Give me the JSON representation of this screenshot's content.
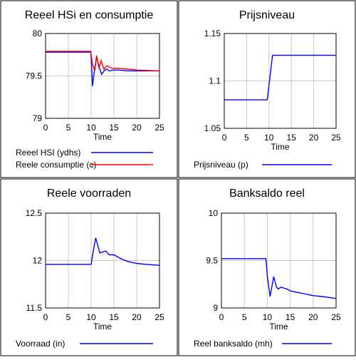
{
  "chart_data": [
    {
      "type": "line",
      "title": "Reeel HSi en consumptie",
      "xlabel": "Time",
      "ylabel": "",
      "xlim": [
        0,
        25
      ],
      "ylim": [
        79,
        80
      ],
      "xticks": [
        "0",
        "5",
        "10",
        "15",
        "20",
        "25"
      ],
      "yticks": [
        "80",
        "79.5",
        "79"
      ],
      "grid": true,
      "legend_position": "bottom",
      "series": [
        {
          "name": "Reeel HSI (ydhs)",
          "color": "#0000ff",
          "x": [
            0,
            9.9,
            10,
            10.3,
            10.8,
            11.2,
            11.8,
            12.3,
            13,
            13.5,
            14,
            15,
            16,
            18,
            20,
            25
          ],
          "y": [
            79.78,
            79.78,
            79.72,
            79.38,
            79.6,
            79.72,
            79.6,
            79.52,
            79.57,
            79.58,
            79.56,
            79.57,
            79.57,
            79.56,
            79.56,
            79.56
          ]
        },
        {
          "name": "Reele consumptie (c)",
          "color": "#ff0000",
          "x": [
            0,
            9.9,
            10.3,
            10.8,
            11.2,
            11.7,
            12.2,
            12.8,
            13.5,
            14.5,
            16,
            18,
            20,
            25
          ],
          "y": [
            79.79,
            79.79,
            79.64,
            79.56,
            79.74,
            79.59,
            79.68,
            79.58,
            79.62,
            79.59,
            79.59,
            79.58,
            79.57,
            79.56
          ]
        }
      ]
    },
    {
      "type": "line",
      "title": "Prijsniveau",
      "xlabel": "Time",
      "ylabel": "",
      "xlim": [
        0,
        25
      ],
      "ylim": [
        1.05,
        1.15
      ],
      "xticks": [
        "0",
        "5",
        "10",
        "15",
        "20",
        "25"
      ],
      "yticks": [
        "1.15",
        "1.1",
        "1.05"
      ],
      "grid": true,
      "legend_position": "bottom",
      "series": [
        {
          "name": "Prijsniveau (p)",
          "color": "#0000ff",
          "x": [
            0,
            9.6,
            10.8,
            25
          ],
          "y": [
            1.08,
            1.08,
            1.127,
            1.127
          ]
        }
      ]
    },
    {
      "type": "line",
      "title": "Reele voorraden",
      "xlabel": "Time",
      "ylabel": "",
      "xlim": [
        0,
        25
      ],
      "ylim": [
        11.5,
        12.5
      ],
      "xticks": [
        "0",
        "5",
        "10",
        "15",
        "20",
        "25"
      ],
      "yticks": [
        "12.5",
        "12",
        "11.5"
      ],
      "grid": true,
      "legend_position": "bottom",
      "series": [
        {
          "name": "Voorraad (in)",
          "color": "#0000ff",
          "x": [
            0,
            10,
            10.3,
            11,
            11.9,
            12.5,
            13.2,
            14,
            15,
            16.5,
            18,
            20,
            22,
            25
          ],
          "y": [
            11.96,
            11.96,
            12.05,
            12.24,
            12.08,
            12.09,
            12.1,
            12.06,
            12.06,
            12.02,
            11.99,
            11.97,
            11.96,
            11.95
          ]
        }
      ]
    },
    {
      "type": "line",
      "title": "Banksaldo reel",
      "xlabel": "Time",
      "ylabel": "",
      "xlim": [
        0,
        25
      ],
      "ylim": [
        9,
        10
      ],
      "xticks": [
        "0",
        "5",
        "10",
        "15",
        "20",
        "25"
      ],
      "yticks": [
        "10",
        "9.5",
        "9"
      ],
      "grid": true,
      "legend_position": "bottom",
      "series": [
        {
          "name": "Reel banksaldo (mh)",
          "color": "#0000ff",
          "x": [
            0,
            9.7,
            10,
            10.6,
            11.4,
            12,
            12.4,
            13,
            13.6,
            14.3,
            15,
            16,
            17,
            18,
            19,
            20,
            22,
            25
          ],
          "y": [
            9.52,
            9.52,
            9.34,
            9.12,
            9.33,
            9.22,
            9.2,
            9.22,
            9.21,
            9.2,
            9.18,
            9.17,
            9.16,
            9.15,
            9.14,
            9.13,
            9.12,
            9.1
          ]
        }
      ]
    }
  ]
}
